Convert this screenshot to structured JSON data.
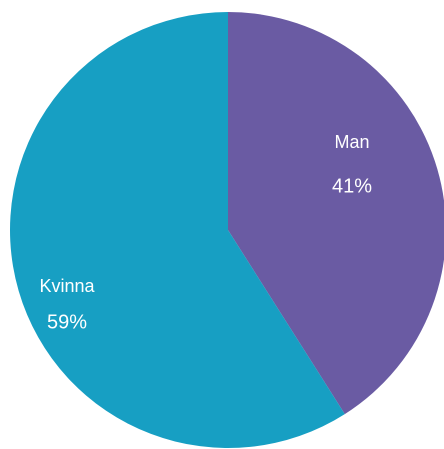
{
  "chart_data": {
    "type": "pie",
    "categories": [
      "Man",
      "Kvinna"
    ],
    "values": [
      41,
      59
    ],
    "value_labels": [
      "41%",
      "59%"
    ],
    "colors": [
      "#6a5ba3",
      "#179fc3"
    ]
  }
}
